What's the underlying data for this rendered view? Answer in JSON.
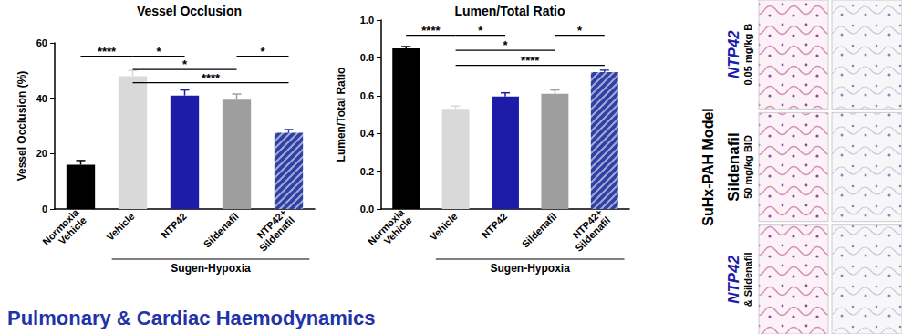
{
  "chart_data": [
    {
      "type": "bar",
      "title": "Vessel Occlusion",
      "ylabel": "Vessel Occlusion (%)",
      "categories": [
        "Normoxia\nVehicle",
        "Vehicle",
        "NTP42",
        "Sildenafil",
        "NTP42+\nSildenafil"
      ],
      "values": [
        16,
        48,
        41,
        39.5,
        27.5
      ],
      "errors": [
        1.5,
        2,
        2,
        2,
        1.2
      ],
      "colors": [
        "#000000",
        "#d9d9d9",
        "#1c1ca8",
        "#9e9e9e",
        "#2f3fa3"
      ],
      "ylim": [
        0,
        60
      ],
      "yticks": [
        0,
        20,
        40,
        60
      ],
      "grid": false,
      "group": {
        "label": "Sugen-Hypoxia",
        "from": "Vehicle",
        "to": "NTP42+\nSildenafil"
      },
      "significance": [
        {
          "from": "Normoxia\nVehicle",
          "to": "Vehicle",
          "label": "****"
        },
        {
          "from": "Vehicle",
          "to": "NTP42",
          "label": "*"
        },
        {
          "from": "Sildenafil",
          "to": "NTP42+\nSildenafil",
          "label": "*"
        },
        {
          "from": "Vehicle",
          "to": "Sildenafil",
          "label": "*"
        },
        {
          "from": "Vehicle",
          "to": "NTP42+\nSildenafil",
          "label": "****"
        }
      ]
    },
    {
      "type": "bar",
      "title": "Lumen/Total Ratio",
      "ylabel": "Lumen/Total Ratio",
      "categories": [
        "Normoxia\nVehicle",
        "Vehicle",
        "NTP42",
        "Sildenafil",
        "NTP42+\nSildenafil"
      ],
      "values": [
        0.85,
        0.53,
        0.595,
        0.61,
        0.725
      ],
      "errors": [
        0.01,
        0.015,
        0.02,
        0.02,
        0.01
      ],
      "colors": [
        "#000000",
        "#d9d9d9",
        "#1c1ca8",
        "#9e9e9e",
        "#2f3fa3"
      ],
      "ylim": [
        0,
        1
      ],
      "yticks": [
        {
          "value": 0,
          "label": "0.0"
        },
        0.2,
        0.4,
        0.6,
        0.8,
        {
          "value": 1,
          "label": "1.0"
        }
      ],
      "grid": false,
      "group": {
        "label": "Sugen-Hypoxia",
        "from": "Vehicle",
        "to": "NTP42+\nSildenafil"
      },
      "significance": [
        {
          "from": "Normoxia\nVehicle",
          "to": "Vehicle",
          "label": "****"
        },
        {
          "from": "Vehicle",
          "to": "NTP42",
          "label": "*"
        },
        {
          "from": "Sildenafil",
          "to": "NTP42+\nSildenafil",
          "label": "*"
        },
        {
          "from": "Vehicle",
          "to": "Sildenafil",
          "label": "*"
        },
        {
          "from": "Vehicle",
          "to": "NTP42+\nSildenafil",
          "label": "****"
        }
      ]
    }
  ],
  "heading": "Pulmonary & Cardiac Haemodynamics",
  "panel": {
    "title": "SuHx-PAH Model",
    "rows": [
      {
        "label": "NTP42",
        "sublabel": "0.05 mg/kg B",
        "color": "#1c1ca8"
      },
      {
        "label": "Sildenafil",
        "sublabel": "50 mg/kg BID",
        "color": "#000000"
      },
      {
        "label": "NTP42",
        "sublabel": "& Sildenafil",
        "color": "#1c1ca8"
      }
    ]
  }
}
